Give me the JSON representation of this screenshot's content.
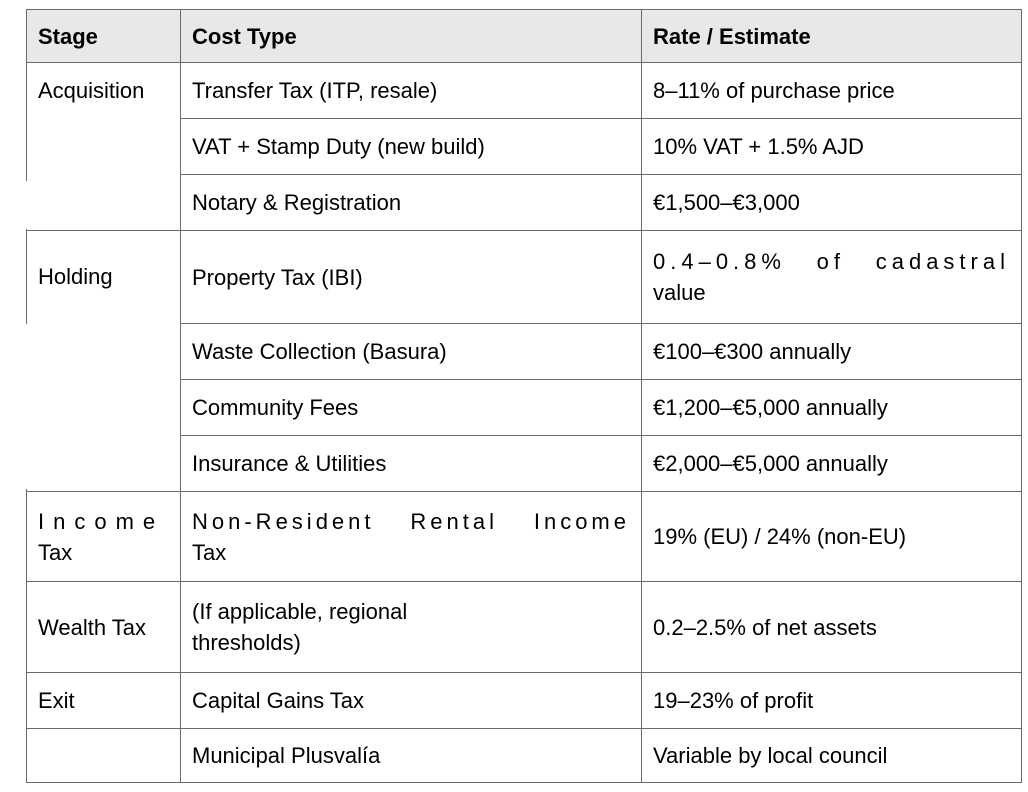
{
  "table": {
    "headers": {
      "stage": "Stage",
      "cost_type": "Cost Type",
      "rate": "Rate / Estimate"
    },
    "header_bg": "#e8e8e8",
    "border_color": "#6a6a6a",
    "text_color": "#000000",
    "rows": [
      {
        "stage": "Acquisition",
        "stage_rowspan": 3,
        "cost_type": "Transfer Tax (ITP, resale)",
        "rate": "8–11% of purchase price"
      },
      {
        "cost_type": "VAT + Stamp Duty (new build)",
        "rate": "10% VAT + 1.5% AJD"
      },
      {
        "cost_type": "Notary & Registration",
        "rate": "€1,500–€3,000"
      },
      {
        "stage": "Holding",
        "stage_rowspan": 4,
        "cost_type": "Property Tax (IBI)",
        "rate": "0.4–0.8% of cadastral value",
        "rate_line1": "0.4–0.8% of cadastral",
        "rate_line2": "value"
      },
      {
        "cost_type": "Waste Collection (Basura)",
        "rate": "€100–€300 annually"
      },
      {
        "cost_type": "Community Fees",
        "rate": "€1,200–€5,000 annually"
      },
      {
        "cost_type": "Insurance & Utilities",
        "rate": "€2,000–€5,000 annually"
      },
      {
        "stage": "Income Tax",
        "stage_line1": "Income",
        "stage_line2": "Tax",
        "cost_type": "Non-Resident Rental Income Tax",
        "cost_line1": "Non-Resident Rental Income",
        "cost_line2": "Tax",
        "rate": "19% (EU) / 24% (non-EU)"
      },
      {
        "stage": "Wealth Tax",
        "cost_type": "(If applicable, regional thresholds)",
        "cost_line1": "(If applicable, regional",
        "cost_line2": "thresholds)",
        "rate": "0.2–2.5% of net assets"
      },
      {
        "stage": "Exit",
        "cost_type": "Capital Gains Tax",
        "rate": "19–23% of profit"
      },
      {
        "stage": "",
        "cost_type": "Municipal Plusvalía",
        "rate": "Variable by local council"
      }
    ]
  }
}
